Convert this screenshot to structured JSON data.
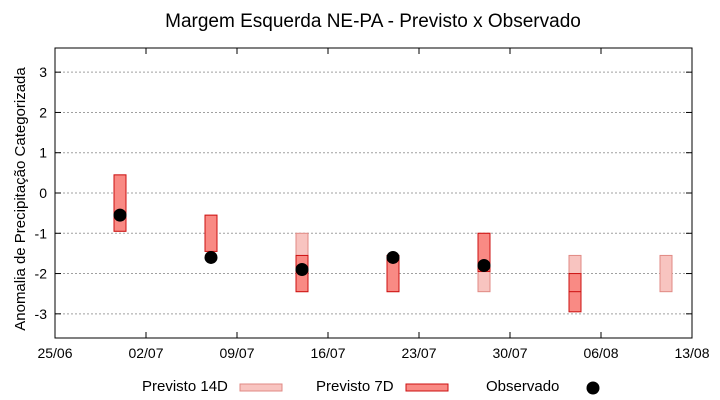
{
  "chart_data": {
    "type": "floating-bar-with-points",
    "title": "Margem Esquerda NE-PA - Previsto x Observado",
    "ylabel": "Anomalia de Precipitação Categorizada",
    "xlabel": "",
    "x_axis": {
      "type": "date",
      "range": [
        "2024-06-25",
        "2024-08-13"
      ],
      "ticks": [
        "25/06",
        "02/07",
        "09/07",
        "16/07",
        "23/07",
        "30/07",
        "06/08",
        "13/08"
      ],
      "tick_dates": [
        "2024-06-25",
        "2024-07-02",
        "2024-07-09",
        "2024-07-16",
        "2024-07-23",
        "2024-07-30",
        "2024-08-06",
        "2024-08-13"
      ]
    },
    "y_axis": {
      "range": [
        -3.6,
        3.6
      ],
      "ticks": [
        -3,
        -2,
        -1,
        0,
        1,
        2,
        3
      ]
    },
    "grid": "horizontal-dashed",
    "legend_position": "bottom",
    "colors": {
      "previsto14d_fill": "#f8c4c0",
      "previsto14d_edge": "#e08a84",
      "previsto7d_fill": "#f98a84",
      "previsto7d_edge": "#cc1010",
      "observado": "#000000"
    },
    "series": [
      {
        "name": "Previsto 14D",
        "kind": "range",
        "points": [
          {
            "x": "2024-06-30",
            "low": -0.95,
            "high": 0.45
          },
          {
            "x": "2024-07-07",
            "low": -1.45,
            "high": -0.55
          },
          {
            "x": "2024-07-14",
            "low": -2.45,
            "high": -1.0
          },
          {
            "x": "2024-07-21",
            "low": -2.45,
            "high": -1.55
          },
          {
            "x": "2024-07-28",
            "low": -2.45,
            "high": -1.0
          },
          {
            "x": "2024-08-04",
            "low": -2.45,
            "high": -1.55
          },
          {
            "x": "2024-08-11",
            "low": -2.45,
            "high": -1.55
          }
        ]
      },
      {
        "name": "Previsto 7D",
        "kind": "range",
        "points": [
          {
            "x": "2024-06-30",
            "low": -0.95,
            "high": 0.45
          },
          {
            "x": "2024-07-07",
            "low": -1.45,
            "high": -0.55
          },
          {
            "x": "2024-07-14",
            "low": -2.45,
            "high": -1.55
          },
          {
            "x": "2024-07-21",
            "low": -2.45,
            "high": -1.55
          },
          {
            "x": "2024-07-28",
            "low": -1.95,
            "high": -1.0
          },
          {
            "x": "2024-08-04",
            "low": -2.95,
            "high": -2.0
          }
        ]
      },
      {
        "name": "Observado",
        "kind": "point",
        "points": [
          {
            "x": "2024-06-30",
            "y": -0.55
          },
          {
            "x": "2024-07-07",
            "y": -1.6
          },
          {
            "x": "2024-07-14",
            "y": -1.9
          },
          {
            "x": "2024-07-21",
            "y": -1.6
          },
          {
            "x": "2024-07-28",
            "y": -1.8
          }
        ]
      }
    ],
    "annotations": [
      {
        "x": "2024-08-04",
        "y": -2.45,
        "type": "divider-line"
      }
    ]
  }
}
